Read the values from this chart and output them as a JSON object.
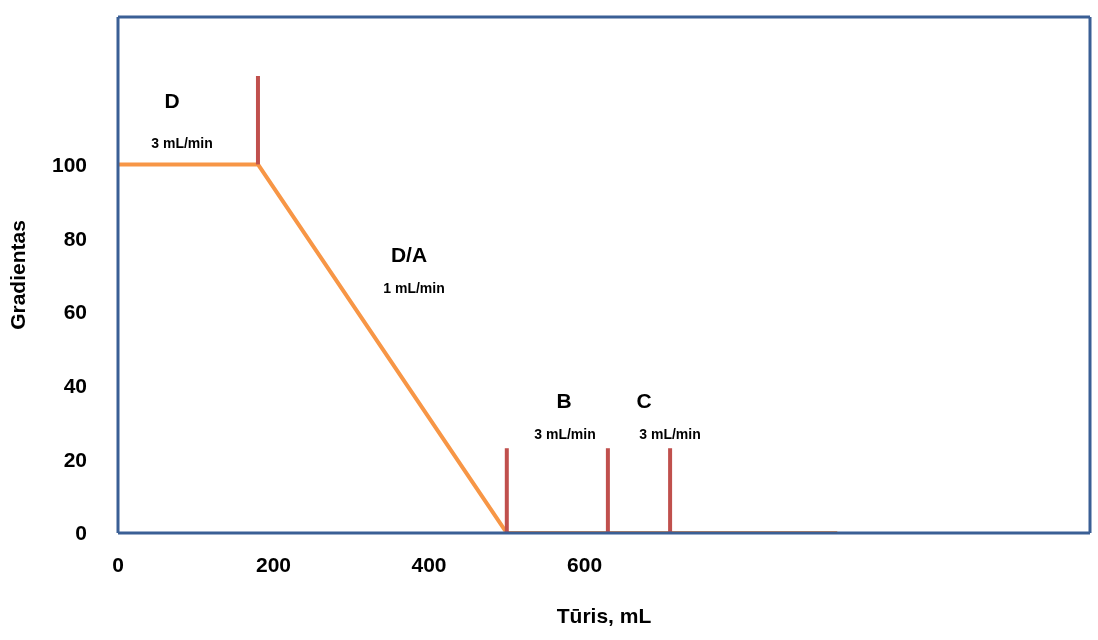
{
  "chart_data": {
    "type": "line",
    "xlabel": "Tūris, mL",
    "ylabel": "Gradientas",
    "xlim": [
      0,
      1250
    ],
    "ylim": [
      0,
      140
    ],
    "xticks": [
      0,
      200,
      400,
      600
    ],
    "yticks": [
      0,
      20,
      40,
      60,
      80,
      100
    ],
    "marker": "none",
    "line_style": "solid",
    "series": [
      {
        "color": "#f79646",
        "x": [
          0,
          180,
          500,
          925
        ],
        "values": [
          100,
          100,
          0,
          0
        ]
      },
      {
        "color": "#c0504d",
        "x": [
          180,
          180
        ],
        "values": [
          100,
          124
        ]
      },
      {
        "color": "#c0504d",
        "x": [
          500,
          500
        ],
        "values": [
          0,
          23
        ]
      },
      {
        "color": "#c0504d",
        "x": [
          630,
          630
        ],
        "values": [
          0,
          23
        ]
      },
      {
        "color": "#c0504d",
        "x": [
          710,
          710
        ],
        "values": [
          0,
          23
        ]
      }
    ],
    "annotations": [
      "D",
      "3 mL/min",
      "D/A",
      "1 mL/min",
      "B",
      "3 mL/min",
      "C",
      "3 mL/min"
    ]
  }
}
